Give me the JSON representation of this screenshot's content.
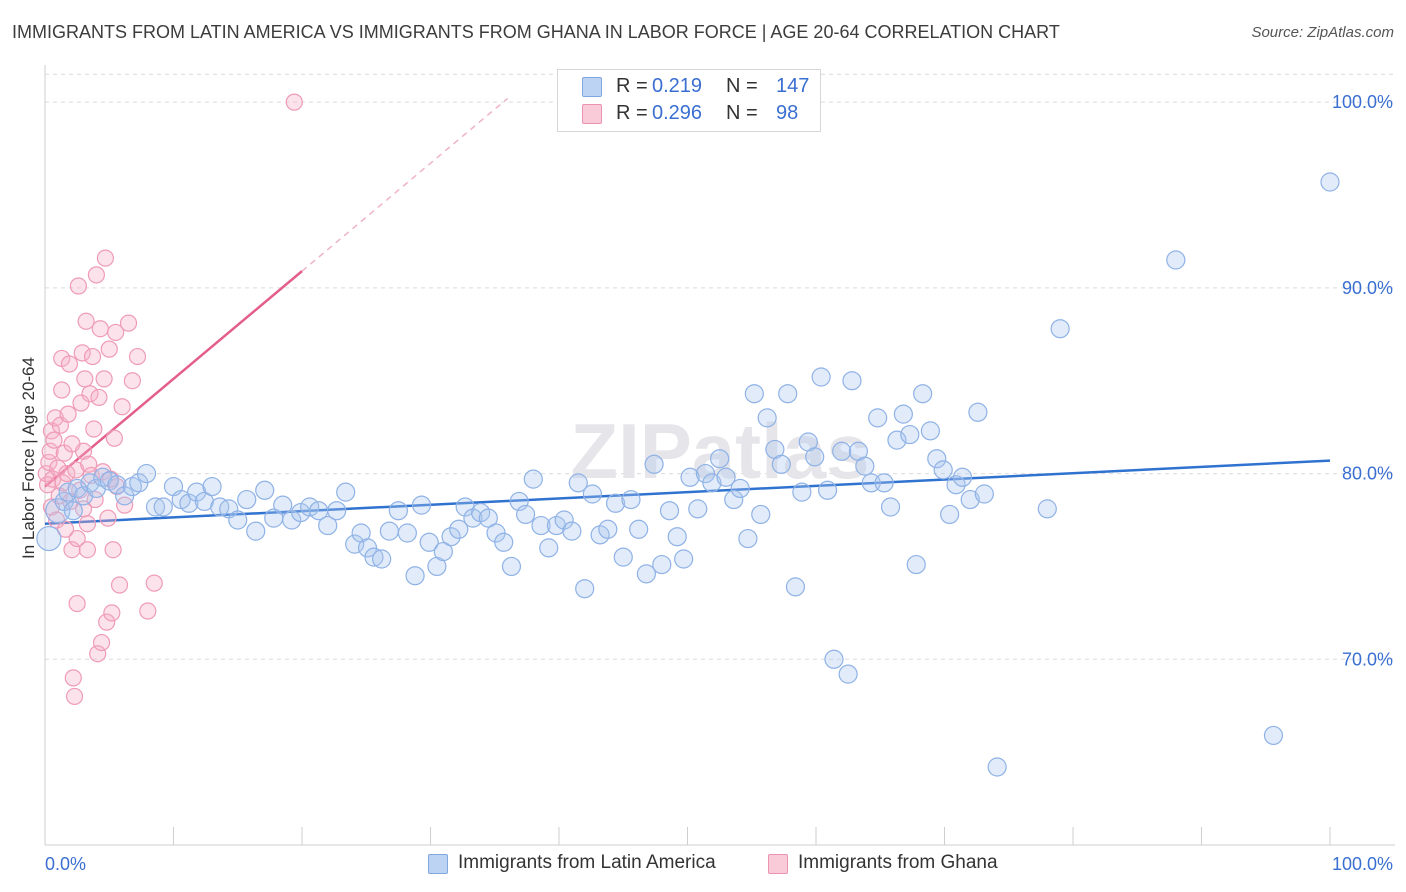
{
  "title": "IMMIGRANTS FROM LATIN AMERICA VS IMMIGRANTS FROM GHANA IN LABOR FORCE | AGE 20-64 CORRELATION CHART",
  "source": "Source: ZipAtlas.com",
  "watermark": "ZIPatlas",
  "colors": {
    "blue": "#a9c6ef",
    "blue_line": "#2f72cf",
    "pink": "#f5b7c9",
    "pink_line": "#e35e8a",
    "tick_label": "#3a6fd1"
  },
  "legend": {
    "rows": [
      {
        "r_label": "R =",
        "r_value": "0.219",
        "n_label": "N =",
        "n_value": "147"
      },
      {
        "r_label": "R =",
        "r_value": "0.296",
        "n_label": "N =",
        "n_value": "98"
      }
    ]
  },
  "bottom_legend": {
    "series1": "Immigrants from Latin America",
    "series2": "Immigrants from Ghana"
  },
  "chart_data": {
    "type": "scatter",
    "title": "IMMIGRANTS FROM LATIN AMERICA VS IMMIGRANTS FROM GHANA IN LABOR FORCE | AGE 20-64 CORRELATION CHART",
    "xlabel": "",
    "ylabel": "In Labor Force | Age 20-64",
    "xlim": [
      0,
      100
    ],
    "ylim": [
      60,
      102
    ],
    "x_tick_labels": [
      "0.0%",
      "100.0%"
    ],
    "y_tick_labels": [
      "70.0%",
      "80.0%",
      "90.0%",
      "100.0%"
    ],
    "y_ticks": [
      70,
      80,
      90,
      100
    ],
    "grid": true,
    "legend_position": "top-center",
    "series": [
      {
        "name": "Immigrants from Latin America",
        "color": "#a9c6ef",
        "r": 0.219,
        "n": 147,
        "trend": {
          "x": [
            0,
            100
          ],
          "y": [
            77.3,
            80.7
          ]
        },
        "points": [
          [
            0.3,
            76.5
          ],
          [
            1.0,
            78.0
          ],
          [
            1.5,
            78.5
          ],
          [
            1.8,
            79.0
          ],
          [
            2.2,
            78.0
          ],
          [
            2.5,
            79.2
          ],
          [
            3.0,
            78.8
          ],
          [
            3.5,
            79.5
          ],
          [
            4.0,
            79.2
          ],
          [
            4.5,
            79.8
          ],
          [
            5.0,
            79.6
          ],
          [
            5.6,
            79.4
          ],
          [
            6.2,
            78.8
          ],
          [
            6.8,
            79.3
          ],
          [
            7.3,
            79.5
          ],
          [
            7.9,
            80.0
          ],
          [
            8.6,
            78.2
          ],
          [
            9.2,
            78.2
          ],
          [
            10.0,
            79.3
          ],
          [
            10.6,
            78.6
          ],
          [
            11.2,
            78.4
          ],
          [
            11.8,
            79.0
          ],
          [
            12.4,
            78.5
          ],
          [
            13.0,
            79.3
          ],
          [
            13.6,
            78.2
          ],
          [
            14.3,
            78.1
          ],
          [
            15.0,
            77.5
          ],
          [
            15.7,
            78.6
          ],
          [
            16.4,
            76.9
          ],
          [
            17.1,
            79.1
          ],
          [
            17.8,
            77.6
          ],
          [
            18.5,
            78.3
          ],
          [
            19.2,
            77.5
          ],
          [
            19.9,
            77.9
          ],
          [
            20.6,
            78.2
          ],
          [
            21.3,
            78.0
          ],
          [
            22.0,
            77.2
          ],
          [
            22.7,
            78.0
          ],
          [
            23.4,
            79.0
          ],
          [
            24.1,
            76.2
          ],
          [
            24.6,
            76.8
          ],
          [
            25.1,
            76.0
          ],
          [
            25.6,
            75.5
          ],
          [
            26.2,
            75.4
          ],
          [
            26.8,
            76.9
          ],
          [
            27.5,
            78.0
          ],
          [
            28.2,
            76.8
          ],
          [
            28.8,
            74.5
          ],
          [
            29.3,
            78.3
          ],
          [
            29.9,
            76.3
          ],
          [
            30.5,
            75.0
          ],
          [
            31.0,
            75.8
          ],
          [
            31.6,
            76.6
          ],
          [
            32.2,
            77.0
          ],
          [
            32.7,
            78.2
          ],
          [
            33.3,
            77.6
          ],
          [
            33.9,
            77.9
          ],
          [
            34.5,
            77.6
          ],
          [
            35.1,
            76.8
          ],
          [
            35.7,
            76.3
          ],
          [
            36.3,
            75.0
          ],
          [
            36.9,
            78.5
          ],
          [
            37.4,
            77.8
          ],
          [
            38.0,
            79.7
          ],
          [
            38.6,
            77.2
          ],
          [
            39.2,
            76.0
          ],
          [
            39.8,
            77.2
          ],
          [
            40.4,
            77.5
          ],
          [
            41.0,
            76.9
          ],
          [
            41.5,
            79.5
          ],
          [
            42.0,
            73.8
          ],
          [
            42.6,
            78.9
          ],
          [
            43.2,
            76.7
          ],
          [
            43.8,
            77.0
          ],
          [
            44.4,
            78.4
          ],
          [
            45.0,
            75.5
          ],
          [
            45.6,
            78.6
          ],
          [
            46.2,
            77.0
          ],
          [
            46.8,
            74.6
          ],
          [
            47.4,
            80.5
          ],
          [
            48.0,
            75.1
          ],
          [
            48.6,
            78.0
          ],
          [
            49.2,
            76.6
          ],
          [
            49.7,
            75.4
          ],
          [
            50.2,
            79.8
          ],
          [
            50.8,
            78.1
          ],
          [
            51.4,
            80.0
          ],
          [
            51.9,
            79.5
          ],
          [
            52.5,
            80.8
          ],
          [
            53.0,
            79.8
          ],
          [
            53.6,
            78.6
          ],
          [
            54.1,
            79.2
          ],
          [
            54.7,
            76.5
          ],
          [
            55.2,
            84.3
          ],
          [
            55.7,
            77.8
          ],
          [
            56.2,
            83.0
          ],
          [
            56.8,
            81.3
          ],
          [
            57.3,
            80.5
          ],
          [
            57.8,
            84.3
          ],
          [
            58.4,
            73.9
          ],
          [
            58.9,
            79.0
          ],
          [
            59.4,
            81.7
          ],
          [
            59.9,
            80.9
          ],
          [
            60.4,
            85.2
          ],
          [
            60.9,
            79.1
          ],
          [
            61.4,
            70.0
          ],
          [
            62.0,
            81.2
          ],
          [
            62.5,
            69.2
          ],
          [
            62.8,
            85.0
          ],
          [
            63.3,
            81.2
          ],
          [
            63.8,
            80.4
          ],
          [
            64.3,
            79.5
          ],
          [
            64.8,
            83.0
          ],
          [
            65.3,
            79.5
          ],
          [
            65.8,
            78.2
          ],
          [
            66.3,
            81.8
          ],
          [
            66.8,
            83.2
          ],
          [
            67.3,
            82.1
          ],
          [
            67.8,
            75.1
          ],
          [
            68.3,
            84.3
          ],
          [
            68.9,
            82.3
          ],
          [
            69.4,
            80.8
          ],
          [
            69.9,
            80.2
          ],
          [
            70.4,
            77.8
          ],
          [
            70.9,
            79.4
          ],
          [
            71.4,
            79.8
          ],
          [
            72.0,
            78.6
          ],
          [
            72.6,
            83.3
          ],
          [
            73.1,
            78.9
          ],
          [
            74.1,
            64.2
          ],
          [
            78.0,
            78.1
          ],
          [
            79.0,
            87.8
          ],
          [
            88.0,
            91.5
          ],
          [
            95.6,
            65.9
          ],
          [
            100.0,
            95.7
          ]
        ]
      },
      {
        "name": "Immigrants from Ghana",
        "color": "#f5b7c9",
        "r": 0.296,
        "n": 98,
        "trend": {
          "x": [
            0,
            20
          ],
          "y": [
            79.3,
            90.9
          ]
        },
        "trend_dashed": {
          "x": [
            20,
            36
          ],
          "y": [
            90.9,
            100.2
          ]
        },
        "points": [
          [
            0.1,
            80.0
          ],
          [
            0.2,
            79.4
          ],
          [
            0.3,
            80.6
          ],
          [
            0.4,
            81.2
          ],
          [
            0.5,
            78.2
          ],
          [
            0.5,
            82.3
          ],
          [
            0.6,
            79.7
          ],
          [
            0.7,
            81.8
          ],
          [
            0.8,
            83.0
          ],
          [
            0.9,
            77.5
          ],
          [
            1.0,
            80.3
          ],
          [
            1.1,
            78.8
          ],
          [
            1.2,
            82.6
          ],
          [
            1.3,
            84.5
          ],
          [
            1.3,
            86.2
          ],
          [
            1.4,
            79.5
          ],
          [
            1.5,
            81.1
          ],
          [
            1.6,
            77.0
          ],
          [
            1.7,
            80.0
          ],
          [
            1.8,
            83.2
          ],
          [
            1.9,
            85.9
          ],
          [
            2.0,
            78.5
          ],
          [
            2.1,
            81.6
          ],
          [
            2.1,
            75.9
          ],
          [
            2.2,
            69.0
          ],
          [
            2.3,
            68.0
          ],
          [
            2.4,
            80.2
          ],
          [
            2.5,
            73.0
          ],
          [
            2.5,
            76.5
          ],
          [
            2.6,
            90.1
          ],
          [
            2.7,
            79.1
          ],
          [
            2.8,
            83.8
          ],
          [
            2.9,
            86.5
          ],
          [
            3.0,
            78.1
          ],
          [
            3.0,
            81.2
          ],
          [
            3.1,
            85.1
          ],
          [
            3.2,
            88.2
          ],
          [
            3.3,
            77.3
          ],
          [
            3.3,
            75.9
          ],
          [
            3.4,
            80.5
          ],
          [
            3.5,
            84.3
          ],
          [
            3.6,
            79.9
          ],
          [
            3.7,
            86.3
          ],
          [
            3.8,
            82.4
          ],
          [
            3.9,
            78.6
          ],
          [
            4.0,
            90.7
          ],
          [
            4.1,
            70.3
          ],
          [
            4.2,
            84.1
          ],
          [
            4.3,
            87.8
          ],
          [
            4.4,
            70.9
          ],
          [
            4.5,
            80.1
          ],
          [
            4.6,
            85.1
          ],
          [
            4.7,
            91.6
          ],
          [
            4.8,
            72.0
          ],
          [
            4.9,
            77.6
          ],
          [
            5.0,
            86.7
          ],
          [
            5.1,
            79.7
          ],
          [
            5.2,
            72.5
          ],
          [
            5.3,
            75.9
          ],
          [
            5.4,
            81.9
          ],
          [
            5.5,
            87.6
          ],
          [
            5.6,
            79.3
          ],
          [
            5.8,
            74.0
          ],
          [
            6.0,
            83.6
          ],
          [
            6.2,
            78.3
          ],
          [
            6.5,
            88.1
          ],
          [
            6.8,
            85.0
          ],
          [
            7.2,
            86.3
          ],
          [
            8.0,
            72.6
          ],
          [
            8.5,
            74.1
          ],
          [
            19.4,
            100.0
          ]
        ]
      }
    ]
  }
}
